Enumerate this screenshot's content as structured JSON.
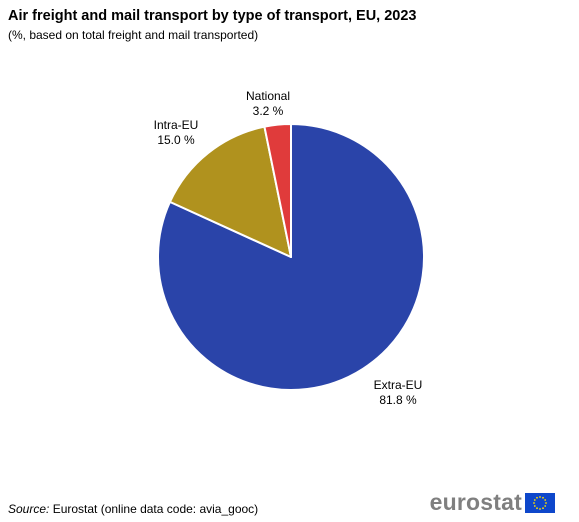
{
  "title": "Air freight and mail transport by type of transport, EU, 2023",
  "subtitle": "(%, based on total freight  and mail transported)",
  "source": {
    "label": "Source:",
    "text": " Eurostat (online data code: avia_gooc)"
  },
  "logo": {
    "text": "eurostat"
  },
  "colors": {
    "flag_blue": "#0e47cb",
    "flag_star": "#ffde00"
  },
  "chart_data": {
    "type": "pie",
    "title": "Air freight and mail transport by type of transport, EU, 2023",
    "subtitle": "(%, based on total freight  and mail transported)",
    "slices": [
      {
        "name": "Extra-EU",
        "value": 81.8,
        "label": "81.8 %",
        "color": "#2a44a9"
      },
      {
        "name": "Intra-EU",
        "value": 15.0,
        "label": "15.0 %",
        "color": "#b0921e"
      },
      {
        "name": "National",
        "value": 3.2,
        "label": "3.2 %",
        "color": "#e03b3b"
      }
    ]
  }
}
